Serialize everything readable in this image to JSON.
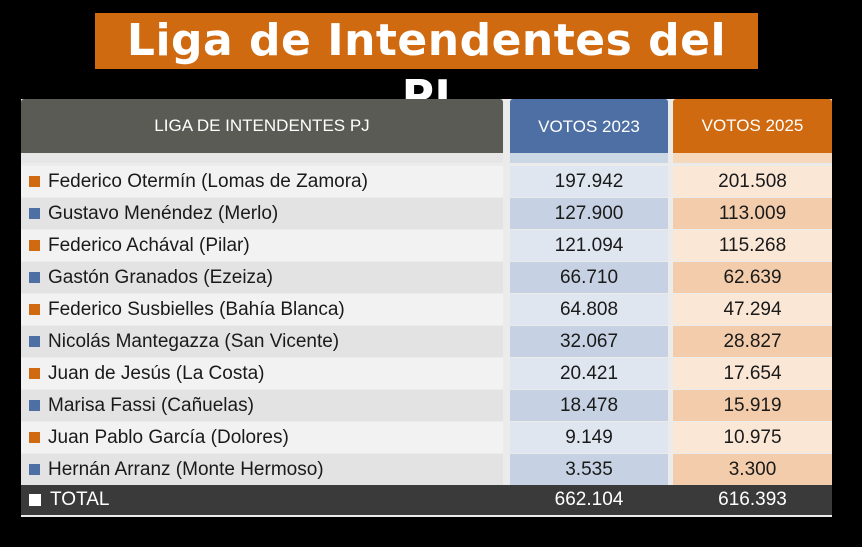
{
  "title": "Liga de Intendentes del PJ",
  "colors": {
    "accent_orange": "#d06a10",
    "accent_blue": "#4e6fa4",
    "header_gray": "#5a5b54"
  },
  "table": {
    "headers": {
      "name": "LIGA DE INTENDENTES PJ",
      "votes_2023": "VOTOS 2023",
      "votes_2025": "VOTOS 2025"
    },
    "rows": [
      {
        "name": "Federico Otermín (Lomas de Zamora)",
        "marker": "orange",
        "v2023": "197.942",
        "v2025": "201.508"
      },
      {
        "name": "Gustavo Menéndez (Merlo)",
        "marker": "blue",
        "v2023": "127.900",
        "v2025": "113.009"
      },
      {
        "name": "Federico Achával (Pilar)",
        "marker": "orange",
        "v2023": "121.094",
        "v2025": "115.268"
      },
      {
        "name": "Gastón Granados (Ezeiza)",
        "marker": "blue",
        "v2023": "66.710",
        "v2025": "62.639"
      },
      {
        "name": "Federico Susbielles (Bahía Blanca)",
        "marker": "orange",
        "v2023": "64.808",
        "v2025": "47.294"
      },
      {
        "name": "Nicolás Mantegazza (San Vicente)",
        "marker": "blue",
        "v2023": "32.067",
        "v2025": "28.827"
      },
      {
        "name": "Juan de Jesús (La Costa)",
        "marker": "orange",
        "v2023": "20.421",
        "v2025": "17.654"
      },
      {
        "name": "Marisa Fassi (Cañuelas)",
        "marker": "blue",
        "v2023": "18.478",
        "v2025": "15.919"
      },
      {
        "name": "Juan Pablo García (Dolores)",
        "marker": "orange",
        "v2023": "9.149",
        "v2025": "10.975"
      },
      {
        "name": "Hernán Arranz (Monte Hermoso)",
        "marker": "blue",
        "v2023": "3.535",
        "v2025": "3.300"
      }
    ],
    "total": {
      "label": "TOTAL",
      "v2023": "662.104",
      "v2025": "616.393"
    }
  }
}
